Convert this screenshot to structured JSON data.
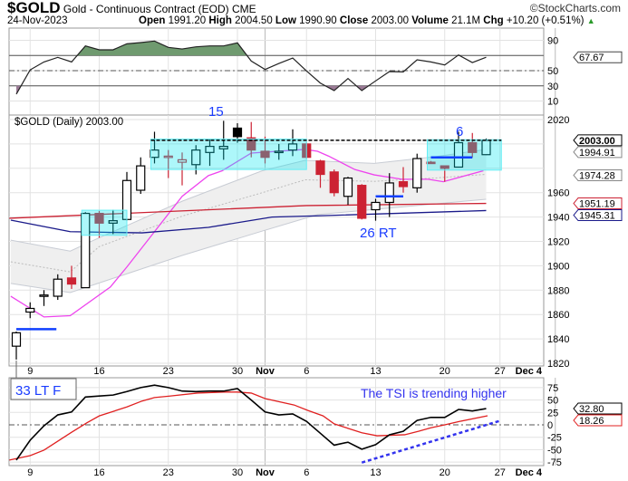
{
  "header": {
    "symbol": "$GOLD",
    "name": "Gold - Continuous Contract (EOD)",
    "exchange": "CME",
    "copyright": "©StockCharts.com",
    "date": "24-Nov-2023",
    "open_label": "Open",
    "open": "1991.20",
    "high_label": "High",
    "high": "2004.50",
    "low_label": "Low",
    "low": "1990.90",
    "close_label": "Close",
    "close": "2003.00",
    "volume_label": "Volume",
    "volume": "21.1M",
    "chg_label": "Chg",
    "chg": "+10.20 (+0.51%)",
    "up_color": "#2a9a2a"
  },
  "price_panel_label": "$GOLD (Daily) 2003.00",
  "date_labels": [
    {
      "t": "9",
      "i": 1
    },
    {
      "t": "16",
      "i": 6
    },
    {
      "t": "23",
      "i": 11
    },
    {
      "t": "30",
      "i": 16
    },
    {
      "t": "Nov",
      "i": 18,
      "bold": true
    },
    {
      "t": "6",
      "i": 21
    },
    {
      "t": "13",
      "i": 26
    },
    {
      "t": "20",
      "i": 31
    },
    {
      "t": "27",
      "i": 35
    },
    {
      "t": "Dec 4",
      "i": 39,
      "bold": true
    }
  ],
  "annotations": {
    "a15": "15",
    "a6": "6",
    "a26": "26 RT",
    "a33": "33 LT F",
    "tsi_note": "The TSI is trending higher"
  },
  "chart_data": [
    {
      "type": "line",
      "title": "RSI",
      "ylim": [
        0,
        100
      ],
      "ticks": [
        "90",
        "50",
        "30",
        "10"
      ],
      "levels": [
        70,
        50,
        30
      ],
      "readout": "67.67",
      "values": [
        19,
        51,
        61.5,
        67.5,
        61.5,
        82.6,
        77.5,
        77.5,
        85.4,
        87,
        89,
        80.7,
        78.6,
        81.4,
        82.6,
        82.6,
        86.6,
        62.7,
        51.6,
        59.5,
        66.7,
        49.6,
        33.6,
        23.7,
        39.6,
        23.7,
        36.5,
        48.8,
        48.4,
        64.3,
        61.5,
        57.5,
        70.7,
        60.7,
        67.67
      ]
    },
    {
      "type": "candlestick",
      "title": "$GOLD (Daily)",
      "ylim": [
        1820,
        2020
      ],
      "yticks": [
        2020,
        1960,
        1940,
        1920,
        1900,
        1880,
        1860,
        1840,
        1820
      ],
      "candles": [
        {
          "o": 1834,
          "h": 1846,
          "l": 1823,
          "c": 1845,
          "k": "up"
        },
        {
          "o": 1862,
          "h": 1870,
          "l": 1857,
          "c": 1865,
          "k": "up"
        },
        {
          "o": 1875,
          "h": 1880,
          "l": 1867,
          "c": 1876,
          "k": "up"
        },
        {
          "o": 1875,
          "h": 1893,
          "l": 1872,
          "c": 1889,
          "k": "up"
        },
        {
          "o": 1890,
          "h": 1900,
          "l": 1881,
          "c": 1885,
          "k": "red"
        },
        {
          "o": 1882,
          "h": 1944,
          "l": 1882,
          "c": 1943,
          "k": "up"
        },
        {
          "o": 1943,
          "h": 1945,
          "l": 1923,
          "c": 1935,
          "k": "red"
        },
        {
          "o": 1935,
          "h": 1946,
          "l": 1926,
          "c": 1937,
          "k": "up"
        },
        {
          "o": 1938,
          "h": 1977,
          "l": 1937,
          "c": 1970,
          "k": "up"
        },
        {
          "o": 1962,
          "h": 1989,
          "l": 1959,
          "c": 1982,
          "k": "up"
        },
        {
          "o": 1989,
          "h": 2010,
          "l": 1984,
          "c": 1995,
          "k": "up"
        },
        {
          "o": 1990,
          "h": 1995,
          "l": 1972,
          "c": 1989,
          "k": "redline"
        },
        {
          "o": 1987,
          "h": 1993,
          "l": 1966,
          "c": 1985,
          "k": "redline"
        },
        {
          "o": 1983,
          "h": 1999,
          "l": 1975,
          "c": 1995,
          "k": "up"
        },
        {
          "o": 1993,
          "h": 2004,
          "l": 1982,
          "c": 1998,
          "k": "up"
        },
        {
          "o": 1996,
          "h": 2019,
          "l": 1987,
          "c": 1998,
          "k": "up"
        },
        {
          "o": 2013,
          "h": 2017,
          "l": 2001,
          "c": 2006,
          "k": "black"
        },
        {
          "o": 2005,
          "h": 2018,
          "l": 1989,
          "c": 1995,
          "k": "red"
        },
        {
          "o": 1994,
          "h": 2006,
          "l": 1984,
          "c": 1989,
          "k": "red"
        },
        {
          "o": 1993,
          "h": 2000,
          "l": 1987,
          "c": 1994,
          "k": "up"
        },
        {
          "o": 1995,
          "h": 2012,
          "l": 1990,
          "c": 2000,
          "k": "up"
        },
        {
          "o": 2000,
          "h": 2001,
          "l": 1988,
          "c": 1989,
          "k": "red"
        },
        {
          "o": 1986,
          "h": 1987,
          "l": 1964,
          "c": 1975,
          "k": "red"
        },
        {
          "o": 1977,
          "h": 1979,
          "l": 1957,
          "c": 1960,
          "k": "red"
        },
        {
          "o": 1957,
          "h": 1973,
          "l": 1950,
          "c": 1972,
          "k": "up"
        },
        {
          "o": 1966,
          "h": 1967,
          "l": 1938,
          "c": 1939,
          "k": "red"
        },
        {
          "o": 1946,
          "h": 1955,
          "l": 1937,
          "c": 1952,
          "k": "up"
        },
        {
          "o": 1952,
          "h": 1976,
          "l": 1940,
          "c": 1968,
          "k": "up"
        },
        {
          "o": 1969,
          "h": 1981,
          "l": 1960,
          "c": 1965,
          "k": "red"
        },
        {
          "o": 1964,
          "h": 1992,
          "l": 1960,
          "c": 1988,
          "k": "up"
        },
        {
          "o": 1985,
          "h": 1986,
          "l": 1984,
          "c": 1984.5,
          "k": "red"
        },
        {
          "o": 1982,
          "h": 1982,
          "l": 1969,
          "c": 1980,
          "k": "red"
        },
        {
          "o": 1981,
          "h": 2010,
          "l": 1981,
          "c": 2001,
          "k": "up"
        },
        {
          "o": 2001,
          "h": 2009,
          "l": 1989,
          "c": 1993,
          "k": "red"
        },
        {
          "o": 1991.2,
          "h": 2004.5,
          "l": 1990.9,
          "c": 2003,
          "k": "up"
        }
      ],
      "overlays": [
        {
          "name": "ema-magenta",
          "color": "#ee44ee",
          "pts": [
            [
              -0.4,
              1875
            ],
            [
              2,
              1858
            ],
            [
              3.9,
              1859
            ],
            [
              6.8,
              1882.5
            ],
            [
              8,
              1899
            ],
            [
              10,
              1928
            ],
            [
              12,
              1957
            ],
            [
              13.9,
              1974
            ],
            [
              14.9,
              1978
            ],
            [
              17,
              1992.5
            ],
            [
              20.9,
              1995.5
            ],
            [
              21.8,
              1994
            ],
            [
              22.6,
              1990
            ],
            [
              24.5,
              1979
            ],
            [
              25.9,
              1974.6
            ],
            [
              27.9,
              1971
            ],
            [
              29.8,
              1971
            ],
            [
              30.9,
              1969
            ],
            [
              33.8,
              1978
            ]
          ]
        },
        {
          "name": "sma-red",
          "color": "#cc2233",
          "pts": [
            [
              -0.5,
              1939
            ],
            [
              21,
              1949.4
            ],
            [
              34,
              1951.19
            ]
          ]
        },
        {
          "name": "sma-navy",
          "color": "#1a1a8a",
          "pts": [
            [
              -0.4,
              1937.5
            ],
            [
              3.9,
              1928
            ],
            [
              9.1,
              1927
            ],
            [
              13.9,
              1931.5
            ],
            [
              18.5,
              1940
            ],
            [
              21.8,
              1941
            ],
            [
              34,
              1945.31
            ]
          ]
        }
      ],
      "bb_upper": [
        [
          -0.4,
          1921
        ],
        [
          3.9,
          1912
        ],
        [
          6,
          1923
        ],
        [
          12,
          1953
        ],
        [
          17.8,
          1978
        ],
        [
          20.9,
          1986.5
        ],
        [
          25.9,
          1984
        ],
        [
          30.3,
          1989.5
        ],
        [
          34,
          1995.5
        ]
      ],
      "bb_lower": [
        [
          -0.4,
          1885.5
        ],
        [
          3.9,
          1878
        ],
        [
          12,
          1908.5
        ],
        [
          17.8,
          1928.5
        ],
        [
          21.8,
          1942
        ],
        [
          34,
          1954.6
        ]
      ],
      "boxes": [
        {
          "i0": 5,
          "i1": 8,
          "top": 1945.6,
          "bottom": 1925
        },
        {
          "i0": 10,
          "i1": 21,
          "top": 2004,
          "bottom": 1979
        },
        {
          "i0": 30,
          "i1": 35.1,
          "top": 2003.5,
          "bottom": 1978.5
        }
      ],
      "resistance": {
        "i0": 10,
        "i1": 35.1,
        "price": 2003
      },
      "blue_levels": [
        {
          "i0": 0,
          "i1": 2.9,
          "price": 1848
        },
        {
          "i0": 26,
          "i1": 28,
          "price": 1957
        },
        {
          "i0": 30,
          "i1": 33,
          "price": 1989
        }
      ],
      "readouts": [
        {
          "t": "2003.00",
          "p": 2003,
          "c": "#000",
          "bold": true
        },
        {
          "t": "1994.91",
          "p": 1994.91,
          "c": "#888"
        },
        {
          "t": "1974.28",
          "p": 1974.28,
          "c": "#888"
        },
        {
          "t": "1951.19",
          "p": 1951.19,
          "c": "#cc2233"
        },
        {
          "t": "1945.31",
          "p": 1945.31,
          "c": "#1a1a8a"
        }
      ]
    },
    {
      "type": "line",
      "title": "TSI",
      "ylim": [
        -85,
        90
      ],
      "ticks": [
        "75",
        "50",
        "25",
        "0",
        "-25",
        "-50",
        "-75"
      ],
      "tsi": [
        -71,
        -31,
        -2,
        20,
        26,
        56,
        58,
        60,
        67,
        75,
        80,
        75,
        68,
        67,
        68,
        68,
        73,
        50,
        26,
        20,
        22,
        7,
        -17,
        -41,
        -35,
        -49,
        -40,
        -20,
        -13,
        9,
        15,
        15,
        31,
        28,
        32.8
      ],
      "signal": [
        [
          -0.5,
          -71
        ],
        [
          1,
          -62
        ],
        [
          2,
          -51
        ],
        [
          3,
          -33
        ],
        [
          4,
          -15
        ],
        [
          5.1,
          4
        ],
        [
          6,
          18
        ],
        [
          7,
          27
        ],
        [
          8,
          36
        ],
        [
          9.1,
          48
        ],
        [
          10,
          55
        ],
        [
          11.1,
          58
        ],
        [
          13.1,
          64
        ],
        [
          15,
          66
        ],
        [
          16,
          66
        ],
        [
          17,
          64
        ],
        [
          18,
          53
        ],
        [
          19.1,
          46
        ],
        [
          20.1,
          40
        ],
        [
          21.1,
          29
        ],
        [
          22.2,
          18
        ],
        [
          23,
          2
        ],
        [
          24,
          -7
        ],
        [
          25,
          -16
        ],
        [
          26.1,
          -22
        ],
        [
          28.1,
          -20
        ],
        [
          29.1,
          -13
        ],
        [
          30,
          -6
        ],
        [
          31,
          0
        ],
        [
          32.1,
          7
        ],
        [
          34.1,
          18.26
        ]
      ],
      "trend": [
        [
          25,
          -76
        ],
        [
          35.1,
          9
        ]
      ],
      "readouts": [
        {
          "t": "32.80",
          "v": 32.8,
          "c": "#000"
        },
        {
          "t": "18.26",
          "v": 18.26,
          "c": "#e02020"
        }
      ]
    }
  ]
}
